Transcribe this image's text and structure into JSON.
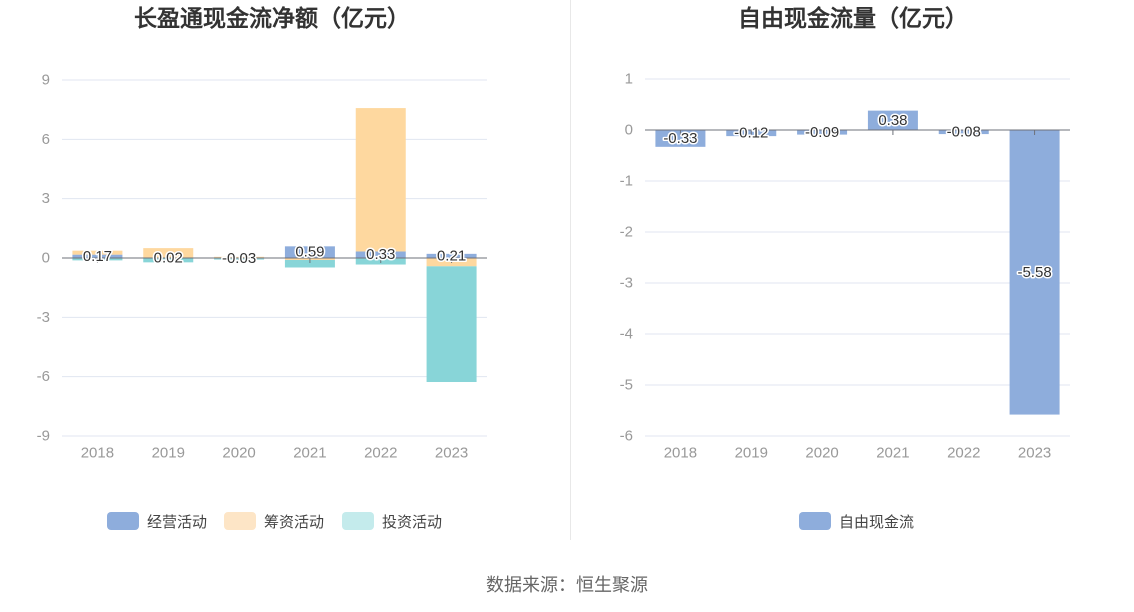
{
  "chart_data": [
    {
      "type": "bar",
      "stacked": true,
      "title": "长盈通现金流净额（亿元）",
      "categories": [
        "2018",
        "2019",
        "2020",
        "2021",
        "2022",
        "2023"
      ],
      "ylim": [
        -9,
        9
      ],
      "yticks": [
        9,
        6,
        3,
        0,
        -3,
        -6,
        -9
      ],
      "grid": true,
      "legend_position": "bottom",
      "series": [
        {
          "name": "经营活动",
          "values": [
            0.17,
            0.02,
            -0.03,
            0.59,
            0.33,
            0.21
          ],
          "color": "#8eaddc",
          "legend_color": "#8eaddc",
          "show_labels": true
        },
        {
          "name": "筹资活动",
          "values": [
            0.2,
            0.48,
            0.06,
            -0.1,
            7.25,
            -0.42
          ],
          "color": "#fed89f",
          "legend_color": "#fde5c6",
          "show_labels": false
        },
        {
          "name": "投资活动",
          "values": [
            -0.12,
            -0.22,
            -0.05,
            -0.38,
            -0.33,
            -5.85
          ],
          "color": "#88d5d8",
          "legend_color": "#c4ebec",
          "show_labels": false
        }
      ]
    },
    {
      "type": "bar",
      "stacked": false,
      "title": "自由现金流量（亿元）",
      "categories": [
        "2018",
        "2019",
        "2020",
        "2021",
        "2022",
        "2023"
      ],
      "ylim": [
        -6,
        1
      ],
      "yticks": [
        1,
        0,
        -1,
        -2,
        -3,
        -4,
        -5,
        -6
      ],
      "grid": true,
      "legend_position": "bottom",
      "series": [
        {
          "name": "自由现金流",
          "values": [
            -0.33,
            -0.12,
            -0.09,
            0.38,
            -0.08,
            -5.58
          ],
          "color": "#8eaddc",
          "legend_color": "#8eaddc",
          "show_labels": true
        }
      ]
    }
  ],
  "footer": {
    "source": "数据来源：恒生聚源"
  }
}
